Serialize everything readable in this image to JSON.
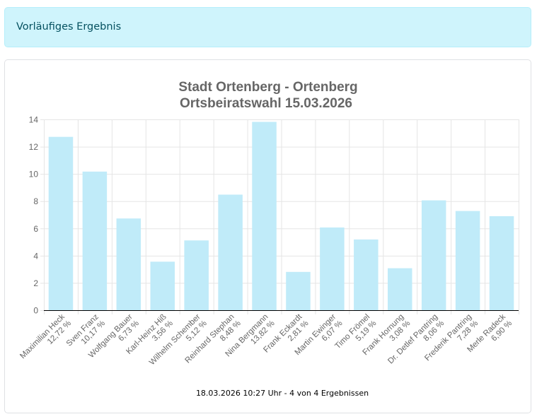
{
  "alert": {
    "text": "Vorläufiges Ergebnis"
  },
  "colors": {
    "bar": "#c0ebf9",
    "grid": "#e5e5e5",
    "alert_bg": "#cff4fc",
    "alert_text": "#055160"
  },
  "chart_data": {
    "type": "bar",
    "title": [
      "Stadt Ortenberg - Ortenberg",
      "Ortsbeiratswahl 15.03.2026"
    ],
    "ylim": [
      0,
      14
    ],
    "yticks": [
      0,
      2,
      4,
      6,
      8,
      10,
      12,
      14
    ],
    "grid": true,
    "categories": [
      "Maximilian Heck",
      "Sven Franz",
      "Wolfgang Bauer",
      "Karl-Heinz Hiß",
      "Wilhelm Schember",
      "Reinhard Stephan",
      "Nina Bergmann",
      "Frank Eckardt",
      "Martin Ewinger",
      "Timo Frömel",
      "Frank Hornung",
      "Dr. Detlef Pantring",
      "Frederik Pantring",
      "Merle Radeck"
    ],
    "value_labels": [
      "12,72 %",
      "10,17 %",
      "6,73 %",
      "3,56 %",
      "5,12 %",
      "8,48 %",
      "13,82 %",
      "2,81 %",
      "6,07 %",
      "5,19 %",
      "3,08 %",
      "8,06 %",
      "7,28 %",
      "6,90 %"
    ],
    "values": [
      12.72,
      10.17,
      6.73,
      3.56,
      5.12,
      8.48,
      13.82,
      2.81,
      6.07,
      5.19,
      3.08,
      8.06,
      7.28,
      6.9
    ]
  },
  "footer": "18.03.2026 10:27 Uhr - 4 von 4 Ergebnissen"
}
